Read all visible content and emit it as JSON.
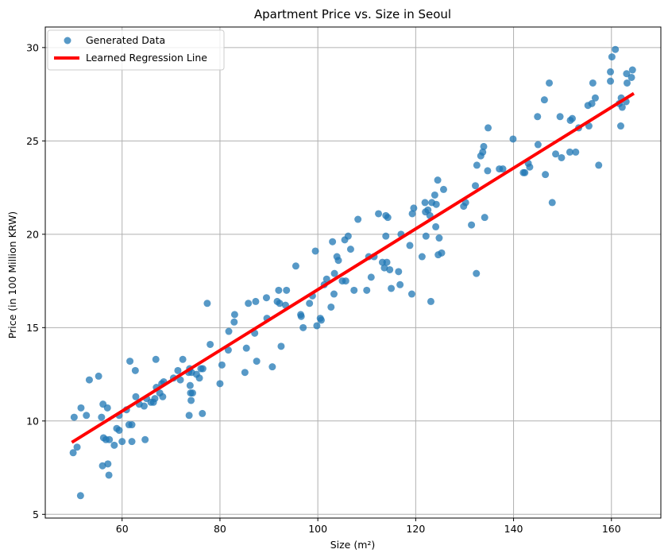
{
  "chart_data": {
    "type": "scatter",
    "title": "Apartment Price vs. Size in Seoul",
    "xlabel": "Size (m²)",
    "ylabel": "Price (in 100 Million KRW)",
    "xlim": [
      44.3,
      170.1
    ],
    "ylim": [
      4.8,
      31.1
    ],
    "xticks": [
      60,
      80,
      100,
      120,
      140,
      160
    ],
    "yticks": [
      5,
      10,
      15,
      20,
      25,
      30
    ],
    "grid": true,
    "legend_position": "top-left",
    "series": [
      {
        "name": "Generated Data",
        "kind": "scatter",
        "color": "#1f77b4",
        "points": [
          [
            50.0,
            8.3
          ],
          [
            50.2,
            10.2
          ],
          [
            50.8,
            8.6
          ],
          [
            51.5,
            6.0
          ],
          [
            51.6,
            10.7
          ],
          [
            52.7,
            10.3
          ],
          [
            53.3,
            12.2
          ],
          [
            55.2,
            12.4
          ],
          [
            55.8,
            10.2
          ],
          [
            56.0,
            7.6
          ],
          [
            56.1,
            10.9
          ],
          [
            56.2,
            9.1
          ],
          [
            56.7,
            9.0
          ],
          [
            57.0,
            10.7
          ],
          [
            57.1,
            7.7
          ],
          [
            57.3,
            7.1
          ],
          [
            57.4,
            9.0
          ],
          [
            58.4,
            8.7
          ],
          [
            58.9,
            9.6
          ],
          [
            59.4,
            9.5
          ],
          [
            59.4,
            10.3
          ],
          [
            60.0,
            8.9
          ],
          [
            60.9,
            10.6
          ],
          [
            61.4,
            9.8
          ],
          [
            61.6,
            13.2
          ],
          [
            62.0,
            9.8
          ],
          [
            62.0,
            8.9
          ],
          [
            62.7,
            12.7
          ],
          [
            62.8,
            11.3
          ],
          [
            63.5,
            10.9
          ],
          [
            64.5,
            10.8
          ],
          [
            64.7,
            9.0
          ],
          [
            65.0,
            11.2
          ],
          [
            65.9,
            11.0
          ],
          [
            66.4,
            11.0
          ],
          [
            66.7,
            11.2
          ],
          [
            66.9,
            13.3
          ],
          [
            67.0,
            11.8
          ],
          [
            67.7,
            11.5
          ],
          [
            68.1,
            12.0
          ],
          [
            68.3,
            11.3
          ],
          [
            68.5,
            12.1
          ],
          [
            70.5,
            12.3
          ],
          [
            71.4,
            12.7
          ],
          [
            71.9,
            12.2
          ],
          [
            72.4,
            13.3
          ],
          [
            73.6,
            12.6
          ],
          [
            73.7,
            10.3
          ],
          [
            73.8,
            12.8
          ],
          [
            73.9,
            11.9
          ],
          [
            74.0,
            11.5
          ],
          [
            74.1,
            11.1
          ],
          [
            74.2,
            12.6
          ],
          [
            74.4,
            11.5
          ],
          [
            75.2,
            12.5
          ],
          [
            75.8,
            12.3
          ],
          [
            76.1,
            12.8
          ],
          [
            76.4,
            10.4
          ],
          [
            76.5,
            12.8
          ],
          [
            77.4,
            16.3
          ],
          [
            78.0,
            14.1
          ],
          [
            80.0,
            12.0
          ],
          [
            80.4,
            13.0
          ],
          [
            81.7,
            13.8
          ],
          [
            81.8,
            14.8
          ],
          [
            82.9,
            15.3
          ],
          [
            83.0,
            15.7
          ],
          [
            85.1,
            12.6
          ],
          [
            85.4,
            13.9
          ],
          [
            85.8,
            16.3
          ],
          [
            87.1,
            14.7
          ],
          [
            87.3,
            16.4
          ],
          [
            87.5,
            13.2
          ],
          [
            89.5,
            16.6
          ],
          [
            89.6,
            15.5
          ],
          [
            90.7,
            12.9
          ],
          [
            91.7,
            16.4
          ],
          [
            92.0,
            17.0
          ],
          [
            92.2,
            16.3
          ],
          [
            92.5,
            14.0
          ],
          [
            93.4,
            16.2
          ],
          [
            93.6,
            17.0
          ],
          [
            95.5,
            18.3
          ],
          [
            96.5,
            15.7
          ],
          [
            96.6,
            15.6
          ],
          [
            97.0,
            15.0
          ],
          [
            98.3,
            16.3
          ],
          [
            98.9,
            16.7
          ],
          [
            99.5,
            19.1
          ],
          [
            99.8,
            15.1
          ],
          [
            100.5,
            15.5
          ],
          [
            100.7,
            15.4
          ],
          [
            101.3,
            17.3
          ],
          [
            101.8,
            17.6
          ],
          [
            102.7,
            16.1
          ],
          [
            103.0,
            19.6
          ],
          [
            103.3,
            16.8
          ],
          [
            103.4,
            17.9
          ],
          [
            103.9,
            18.8
          ],
          [
            104.2,
            18.6
          ],
          [
            105.0,
            17.5
          ],
          [
            105.5,
            19.7
          ],
          [
            105.7,
            17.5
          ],
          [
            106.2,
            19.9
          ],
          [
            106.7,
            19.2
          ],
          [
            107.4,
            17.0
          ],
          [
            108.2,
            20.8
          ],
          [
            110.0,
            17.0
          ],
          [
            110.4,
            18.8
          ],
          [
            110.9,
            17.7
          ],
          [
            111.5,
            18.8
          ],
          [
            112.4,
            21.1
          ],
          [
            113.2,
            18.5
          ],
          [
            113.6,
            18.2
          ],
          [
            113.9,
            19.9
          ],
          [
            113.9,
            21.0
          ],
          [
            114.1,
            18.5
          ],
          [
            114.3,
            20.9
          ],
          [
            114.7,
            18.1
          ],
          [
            115.0,
            17.1
          ],
          [
            116.5,
            18.0
          ],
          [
            116.8,
            17.3
          ],
          [
            117.0,
            20.0
          ],
          [
            118.8,
            19.4
          ],
          [
            119.2,
            16.8
          ],
          [
            119.3,
            21.1
          ],
          [
            119.6,
            21.4
          ],
          [
            121.3,
            18.8
          ],
          [
            121.9,
            21.7
          ],
          [
            122.0,
            21.2
          ],
          [
            122.1,
            19.9
          ],
          [
            122.5,
            21.3
          ],
          [
            122.9,
            21.0
          ],
          [
            123.1,
            16.4
          ],
          [
            123.3,
            21.7
          ],
          [
            123.9,
            22.1
          ],
          [
            124.1,
            20.4
          ],
          [
            124.2,
            21.6
          ],
          [
            124.5,
            22.9
          ],
          [
            124.6,
            18.9
          ],
          [
            124.8,
            19.8
          ],
          [
            125.3,
            19.0
          ],
          [
            125.7,
            22.4
          ],
          [
            129.8,
            21.5
          ],
          [
            130.2,
            21.7
          ],
          [
            131.4,
            20.5
          ],
          [
            132.2,
            22.6
          ],
          [
            132.4,
            17.9
          ],
          [
            132.5,
            23.7
          ],
          [
            133.3,
            24.2
          ],
          [
            133.7,
            24.4
          ],
          [
            133.9,
            24.7
          ],
          [
            134.1,
            20.9
          ],
          [
            134.7,
            23.4
          ],
          [
            134.8,
            25.7
          ],
          [
            137.1,
            23.5
          ],
          [
            137.8,
            23.5
          ],
          [
            139.9,
            25.1
          ],
          [
            142.0,
            23.3
          ],
          [
            142.3,
            23.3
          ],
          [
            143.0,
            23.8
          ],
          [
            143.3,
            23.6
          ],
          [
            144.9,
            26.3
          ],
          [
            145.0,
            24.8
          ],
          [
            146.3,
            27.2
          ],
          [
            146.5,
            23.2
          ],
          [
            147.3,
            28.1
          ],
          [
            147.9,
            21.7
          ],
          [
            148.6,
            24.3
          ],
          [
            149.5,
            26.3
          ],
          [
            149.8,
            24.1
          ],
          [
            151.5,
            24.4
          ],
          [
            151.6,
            26.1
          ],
          [
            152.0,
            26.2
          ],
          [
            152.7,
            24.4
          ],
          [
            153.3,
            25.7
          ],
          [
            155.2,
            26.9
          ],
          [
            155.4,
            25.8
          ],
          [
            156.0,
            27.0
          ],
          [
            156.2,
            28.1
          ],
          [
            156.7,
            27.3
          ],
          [
            157.4,
            23.7
          ],
          [
            159.8,
            28.2
          ],
          [
            159.8,
            28.7
          ],
          [
            160.1,
            29.5
          ],
          [
            160.8,
            29.9
          ],
          [
            161.6,
            27.0
          ],
          [
            161.9,
            25.8
          ],
          [
            162.0,
            27.3
          ],
          [
            162.2,
            26.8
          ],
          [
            163.0,
            27.1
          ],
          [
            163.1,
            28.6
          ],
          [
            163.2,
            28.1
          ],
          [
            164.1,
            28.4
          ],
          [
            164.3,
            28.8
          ]
        ]
      },
      {
        "name": "Learned Regression Line",
        "kind": "line",
        "color": "#ff0000",
        "points": [
          [
            50.0,
            8.9
          ],
          [
            164.3,
            27.5
          ]
        ]
      }
    ]
  }
}
